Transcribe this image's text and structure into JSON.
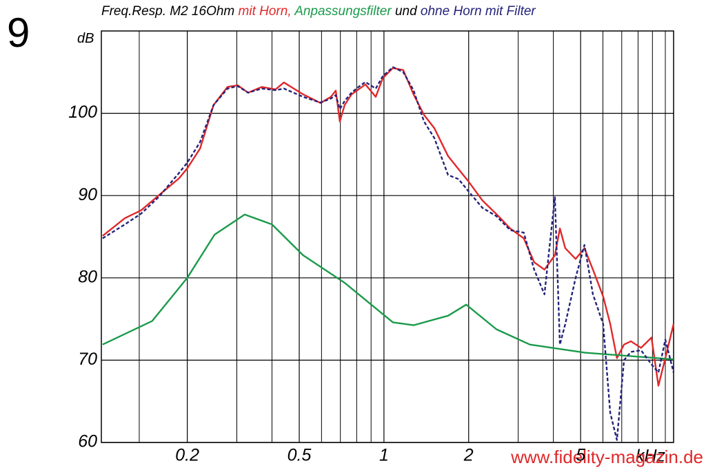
{
  "figure_number": "9",
  "watermark": "www.fidelity-magazin.de",
  "chart_data": {
    "type": "line",
    "title": "Freq.Resp. M2 16Ohm",
    "title_joiner": "und",
    "x_label": "kHz",
    "y_label": "dB",
    "x_log": true,
    "xlim": [
      0.099,
      10.7
    ],
    "xticks": [
      0.2,
      0.5,
      1,
      2,
      5
    ],
    "x_minor_grid": [
      0.135,
      0.3,
      0.4,
      0.6,
      0.7,
      0.8,
      0.9,
      3,
      4,
      6,
      7,
      8,
      9,
      10
    ],
    "ylim": [
      60,
      110
    ],
    "yticks": [
      60,
      70,
      80,
      90,
      100
    ],
    "grid": true,
    "series": [
      {
        "name": "mit Horn,",
        "color": "#e0282a",
        "dash": false,
        "x": [
          0.1,
          0.12,
          0.137,
          0.158,
          0.187,
          0.2,
          0.222,
          0.248,
          0.278,
          0.302,
          0.329,
          0.368,
          0.412,
          0.441,
          0.516,
          0.595,
          0.648,
          0.674,
          0.697,
          0.725,
          0.767,
          0.812,
          0.859,
          0.935,
          0.99,
          1.076,
          1.171,
          1.274,
          1.388,
          1.51,
          1.69,
          1.841,
          2.0,
          2.239,
          2.51,
          2.81,
          3.14,
          3.42,
          3.72,
          4.05,
          4.22,
          4.41,
          4.8,
          5.16,
          5.53,
          6.01,
          6.37,
          6.73,
          7.13,
          7.54,
          8.2,
          8.93,
          9.45,
          10.0,
          10.7
        ],
        "values": [
          85.1,
          87.25,
          88.2,
          90,
          92.1,
          93.3,
          95.7,
          101,
          103.2,
          103.4,
          102.5,
          103.2,
          102.9,
          103.75,
          102.3,
          101.25,
          102,
          102.75,
          99,
          101,
          102.3,
          102.9,
          103.5,
          102,
          104.25,
          105.5,
          105.25,
          102.3,
          99.8,
          98.2,
          94.8,
          93.2,
          91.7,
          89.4,
          87.75,
          86,
          84.8,
          81.9,
          81,
          82.75,
          86,
          83.6,
          82.3,
          83.6,
          81,
          77.75,
          74.4,
          70.25,
          71.9,
          72.3,
          71.5,
          72.75,
          66.9,
          70.25,
          74.4
        ]
      },
      {
        "name": "Anpassungsfilter",
        "color": "#1a9a4a",
        "dash": false,
        "x": [
          0.1,
          0.15,
          0.2,
          0.25,
          0.32,
          0.4,
          0.516,
          0.725,
          1.076,
          1.274,
          1.69,
          1.96,
          2.51,
          3.3,
          5.2,
          10.7
        ],
        "values": [
          71.9,
          74.75,
          80,
          85.25,
          87.7,
          86.5,
          82.75,
          79.4,
          74.6,
          74.25,
          75.4,
          76.75,
          73.75,
          71.9,
          70.9,
          70.1
        ]
      },
      {
        "name": "ohne Horn mit Filter",
        "color": "#23237a",
        "dash": true,
        "x": [
          0.1,
          0.12,
          0.137,
          0.158,
          0.187,
          0.2,
          0.222,
          0.248,
          0.278,
          0.302,
          0.329,
          0.368,
          0.412,
          0.441,
          0.516,
          0.595,
          0.648,
          0.674,
          0.697,
          0.725,
          0.767,
          0.812,
          0.859,
          0.935,
          0.99,
          1.076,
          1.171,
          1.274,
          1.388,
          1.51,
          1.69,
          1.841,
          2.0,
          2.239,
          2.51,
          2.81,
          3.14,
          3.42,
          3.72,
          4.05,
          4.22,
          4.41,
          4.8,
          5.16,
          5.53,
          6.01,
          6.37,
          6.73,
          7.13,
          7.54,
          8.2,
          8.93,
          9.45,
          10.0,
          10.7
        ],
        "values": [
          84.8,
          86.5,
          87.8,
          89.8,
          92.75,
          94,
          96.5,
          101,
          103,
          103.3,
          102.5,
          103,
          102.8,
          103,
          102,
          101.3,
          101.8,
          102.2,
          100.5,
          101.5,
          102.5,
          103.2,
          103.8,
          103,
          104.5,
          105.6,
          105,
          102.8,
          99,
          97,
          92.5,
          92,
          90.5,
          88.5,
          87.5,
          85.8,
          85.5,
          81,
          78,
          89.8,
          71.9,
          74.4,
          80,
          84,
          78,
          74.4,
          63.6,
          60.3,
          70,
          71,
          71.2,
          69.5,
          68.5,
          72.5,
          68.5
        ]
      }
    ]
  }
}
